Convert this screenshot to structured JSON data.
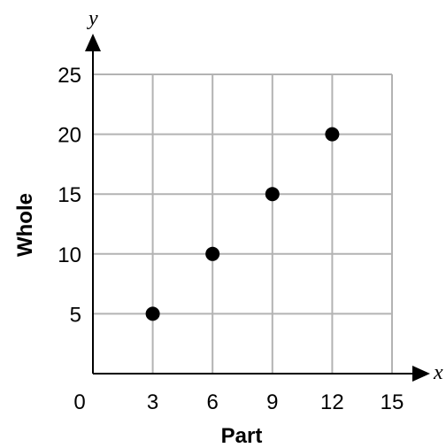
{
  "chart_data": {
    "type": "scatter",
    "x": [
      3,
      6,
      9,
      12
    ],
    "y": [
      5,
      10,
      15,
      20
    ],
    "xlabel": "Part",
    "ylabel": "Whole",
    "x_axis_letter": "x",
    "y_axis_letter": "y",
    "origin_label": "0",
    "xlim": [
      0,
      15
    ],
    "ylim": [
      0,
      25
    ],
    "x_ticks": [
      3,
      6,
      9,
      12,
      15
    ],
    "y_ticks": [
      5,
      10,
      15,
      20,
      25
    ],
    "grid": true,
    "legend": "none",
    "colors": {
      "grid": "#b3b3b3",
      "axis": "#000000",
      "point": "#000000"
    }
  }
}
